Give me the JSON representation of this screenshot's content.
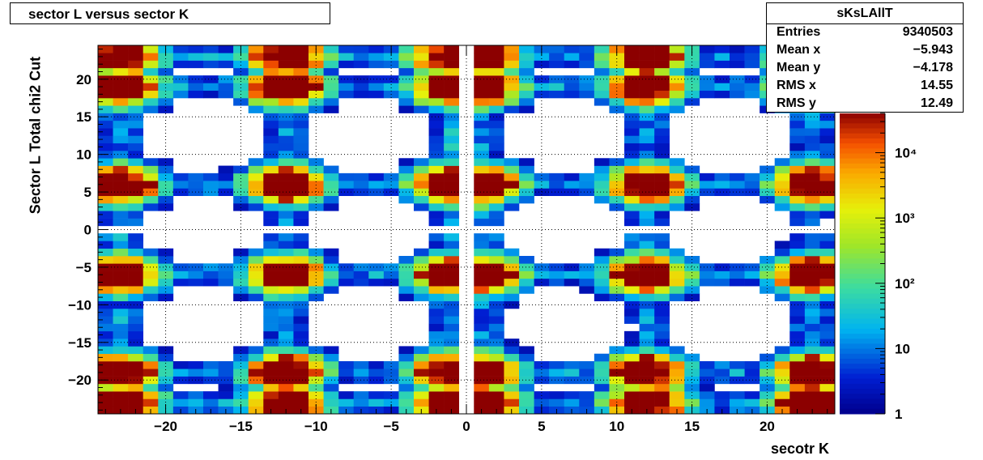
{
  "chart_data": {
    "type": "heatmap",
    "title": "sector L versus sector K",
    "xlabel": "secotr K",
    "ylabel": "Sector L   Total chi2 Cut",
    "xlim": [
      -24.5,
      24.5
    ],
    "ylim": [
      -24.5,
      24.5
    ],
    "x_ticks": [
      -20,
      -15,
      -10,
      -5,
      0,
      5,
      10,
      15,
      20
    ],
    "x_tick_labels": [
      "−20",
      "−15",
      "−10",
      "−5",
      "0",
      "5",
      "10",
      "15",
      "20"
    ],
    "y_ticks": [
      -20,
      -15,
      -10,
      -5,
      0,
      5,
      10,
      15,
      20
    ],
    "y_tick_labels": [
      "−20",
      "−15",
      "−10",
      "−5",
      "0",
      "5",
      "10",
      "15",
      "20"
    ],
    "z_scale": "log",
    "zlim": [
      1,
      40000
    ],
    "z_tick_labels": [
      "1",
      "10",
      "10²",
      "10³",
      "10⁴"
    ],
    "grid": true,
    "colormap": "rainbow",
    "gap_bin_x": 0,
    "gap_bin_y": 0,
    "blob_centers_x": [
      -23,
      -12,
      -1,
      1,
      12,
      23
    ],
    "blob_centers_y": [
      -23,
      -19,
      -6,
      6,
      19,
      23
    ],
    "stats": {
      "name": "sKsLAllT",
      "entries_label": "Entries",
      "entries": "9340503",
      "mean_x_label": "Mean x",
      "mean_x": "−5.943",
      "mean_y_label": "Mean y",
      "mean_y": "−4.178",
      "rms_x_label": "RMS x",
      "rms_x": "14.55",
      "rms_y_label": "RMS y",
      "rms_y": "12.49"
    }
  }
}
